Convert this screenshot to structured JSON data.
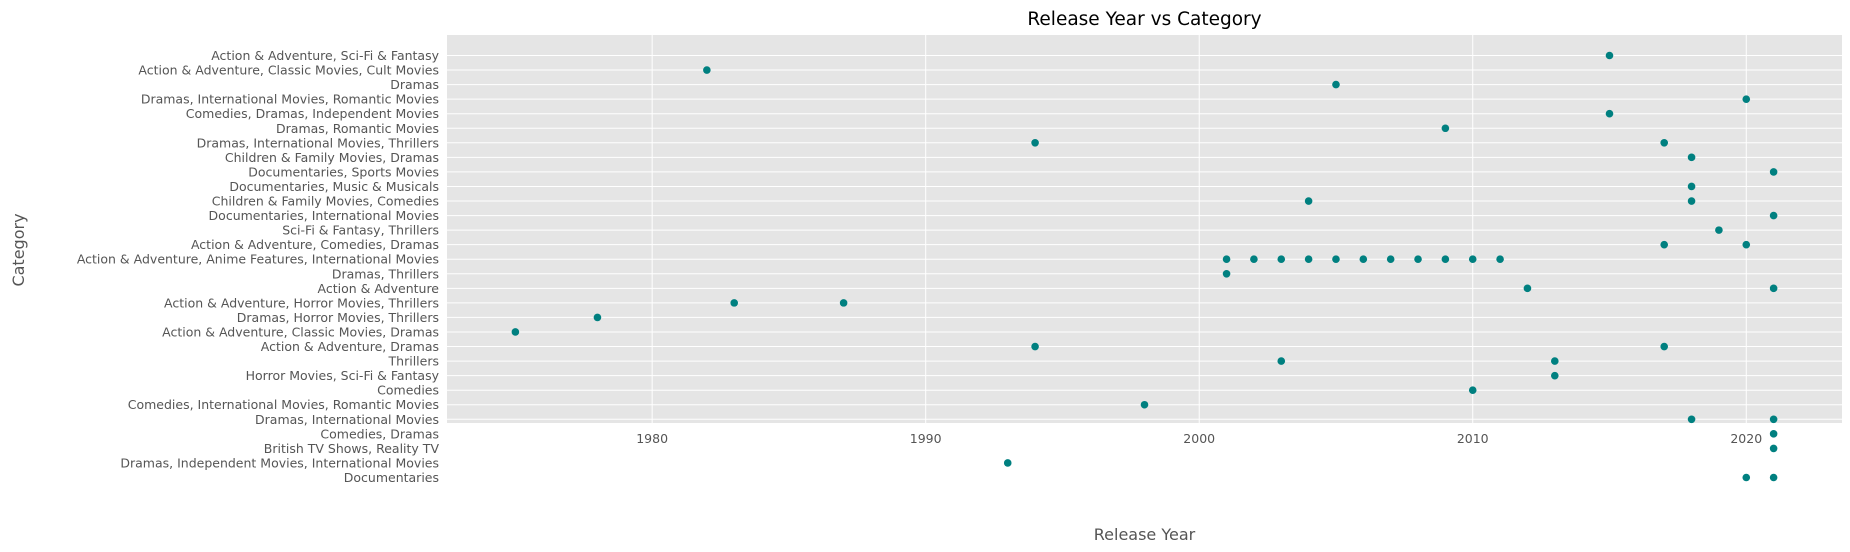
{
  "chart_data": {
    "type": "scatter",
    "title": "Release Year vs Category",
    "xlabel": "Release Year",
    "ylabel": "Category",
    "xlim": [
      1972.5,
      2023.5
    ],
    "xticks": [
      1980,
      1990,
      2000,
      2010,
      2020
    ],
    "grid": true,
    "colors": {
      "marker": "#008080",
      "plot_bg": "#e5e5e5",
      "grid": "#ffffff",
      "text": "#555555"
    },
    "categories": [
      "Action & Adventure, Sci-Fi & Fantasy",
      "Action & Adventure, Classic Movies, Cult Movies",
      "Dramas",
      "Dramas, International Movies, Romantic Movies",
      "Comedies, Dramas, Independent Movies",
      "Dramas, Romantic Movies",
      "Dramas, International Movies, Thrillers",
      "Children & Family Movies, Dramas",
      "Documentaries, Sports Movies",
      "Documentaries, Music & Musicals",
      "Children & Family Movies, Comedies",
      "Documentaries, International Movies",
      "Sci-Fi & Fantasy, Thrillers",
      "Action & Adventure, Comedies, Dramas",
      "Action & Adventure, Anime Features, International Movies",
      "Dramas, Thrillers",
      "Action & Adventure",
      "Action & Adventure, Horror Movies, Thrillers",
      "Dramas, Horror Movies, Thrillers",
      "Action & Adventure, Classic Movies, Dramas",
      "Action & Adventure, Dramas",
      "Thrillers",
      "Horror Movies, Sci-Fi & Fantasy",
      "Comedies",
      "Comedies, International Movies, Romantic Movies",
      "Dramas, International Movies",
      "Comedies, Dramas",
      "British TV Shows, Reality TV",
      "Dramas, Independent Movies, International Movies",
      "Documentaries"
    ],
    "points": [
      {
        "category": "Action & Adventure, Sci-Fi & Fantasy",
        "years": [
          2015
        ]
      },
      {
        "category": "Action & Adventure, Classic Movies, Cult Movies",
        "years": [
          1982
        ]
      },
      {
        "category": "Dramas",
        "years": [
          2005
        ]
      },
      {
        "category": "Dramas, International Movies, Romantic Movies",
        "years": [
          2020
        ]
      },
      {
        "category": "Comedies, Dramas, Independent Movies",
        "years": [
          2015
        ]
      },
      {
        "category": "Dramas, Romantic Movies",
        "years": [
          2009
        ]
      },
      {
        "category": "Dramas, International Movies, Thrillers",
        "years": [
          1994,
          2017
        ]
      },
      {
        "category": "Children & Family Movies, Dramas",
        "years": [
          2018
        ]
      },
      {
        "category": "Documentaries, Sports Movies",
        "years": [
          2021
        ]
      },
      {
        "category": "Documentaries, Music & Musicals",
        "years": [
          2018
        ]
      },
      {
        "category": "Children & Family Movies, Comedies",
        "years": [
          2004,
          2018
        ]
      },
      {
        "category": "Documentaries, International Movies",
        "years": [
          2021
        ]
      },
      {
        "category": "Sci-Fi & Fantasy, Thrillers",
        "years": [
          2019
        ]
      },
      {
        "category": "Action & Adventure, Comedies, Dramas",
        "years": [
          2017,
          2020
        ]
      },
      {
        "category": "Action & Adventure, Anime Features, International Movies",
        "years": [
          2001,
          2002,
          2003,
          2004,
          2005,
          2006,
          2007,
          2008,
          2009,
          2010,
          2011
        ]
      },
      {
        "category": "Dramas, Thrillers",
        "years": [
          2001
        ]
      },
      {
        "category": "Action & Adventure",
        "years": [
          2012,
          2021
        ]
      },
      {
        "category": "Action & Adventure, Horror Movies, Thrillers",
        "years": [
          1983,
          1987
        ]
      },
      {
        "category": "Dramas, Horror Movies, Thrillers",
        "years": [
          1978
        ]
      },
      {
        "category": "Action & Adventure, Classic Movies, Dramas",
        "years": [
          1975
        ]
      },
      {
        "category": "Action & Adventure, Dramas",
        "years": [
          1994,
          2017
        ]
      },
      {
        "category": "Thrillers",
        "years": [
          2003,
          2013
        ]
      },
      {
        "category": "Horror Movies, Sci-Fi & Fantasy",
        "years": [
          2013
        ]
      },
      {
        "category": "Comedies",
        "years": [
          2010
        ]
      },
      {
        "category": "Comedies, International Movies, Romantic Movies",
        "years": [
          1998
        ]
      },
      {
        "category": "Dramas, International Movies",
        "years": [
          2018,
          2021
        ]
      },
      {
        "category": "Comedies, Dramas",
        "years": [
          2021
        ]
      },
      {
        "category": "British TV Shows, Reality TV",
        "years": [
          2021
        ]
      },
      {
        "category": "Dramas, Independent Movies, International Movies",
        "years": [
          1993
        ]
      },
      {
        "category": "Documentaries",
        "years": [
          2020,
          2021
        ]
      }
    ]
  }
}
